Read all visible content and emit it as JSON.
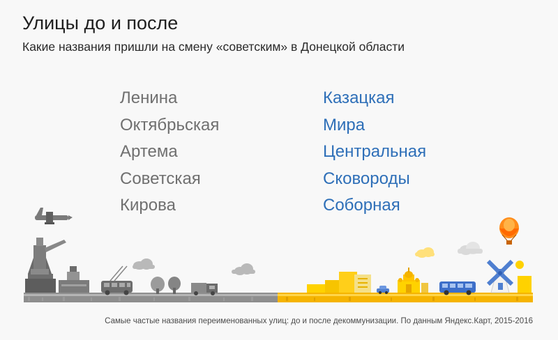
{
  "header": {
    "title": "Улицы до и после",
    "subtitle": "Какие названия пришли на смену «советским» в Донецкой области"
  },
  "streets": {
    "before": [
      "Ленина",
      "Октябрьская",
      "Артема",
      "Советская",
      "Кирова"
    ],
    "after": [
      "Казацкая",
      "Мира",
      "Центральная",
      "Сковороды",
      "Соборная"
    ]
  },
  "footer": {
    "caption": "Самые частые названия переименованных улиц: до и после декоммунизации. По данным Яндекс.Карт, 2015-2016"
  },
  "colors": {
    "before_text": "#707070",
    "after_text": "#2e6fb8",
    "soviet_side": "#6b6b6b",
    "new_side": "#f5b400"
  },
  "illustration": {
    "left_icons": [
      "airplane-icon",
      "monument-icon",
      "pedestal-icon",
      "trolleybus-icon",
      "tree-icon",
      "truck-icon",
      "cloud-icon"
    ],
    "right_icons": [
      "building-icon",
      "car-icon",
      "church-icon",
      "bus-icon",
      "windmill-icon",
      "hot-air-balloon-icon",
      "sun-icon",
      "cloud-icon"
    ]
  }
}
